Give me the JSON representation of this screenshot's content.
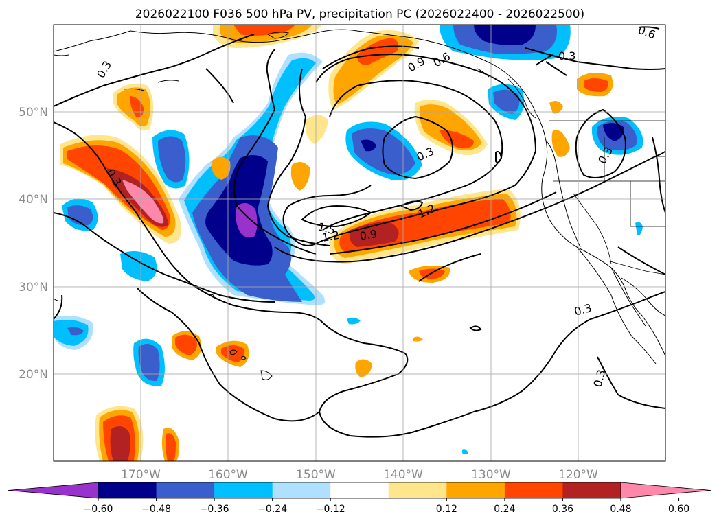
{
  "title": "2026022100 F036 500 hPa PV, precipitation PC (2026022400 - 2026022500)",
  "lat_labels": [
    "50°N",
    "40°N",
    "30°N",
    "20°N"
  ],
  "lon_labels": [
    "170°W",
    "160°W",
    "150°W",
    "140°W",
    "130°W",
    "120°W"
  ],
  "contour_labels": [
    "0.3",
    "0.3",
    "0.3",
    "0.3",
    "0.3",
    "0.3",
    "0.3",
    "0.6",
    "0.6",
    "0.9",
    "0.9",
    "1.2",
    "1.2",
    "1.5"
  ],
  "colorbar": {
    "labels": [
      "−0.60",
      "−0.48",
      "−0.36",
      "−0.24",
      "−0.12",
      "0.12",
      "0.24",
      "0.36",
      "0.48",
      "0.60"
    ],
    "colors": [
      "#9932cc",
      "#00008b",
      "#3a5fcd",
      "#00bfff",
      "#b0e0ff",
      "#ffffff",
      "#ffe68c",
      "#ffa500",
      "#ff4500",
      "#b22222",
      "#ff88aa"
    ]
  },
  "map_extent": {
    "lon_min": -180,
    "lon_max": -110,
    "lat_min": 10,
    "lat_max": 60
  }
}
